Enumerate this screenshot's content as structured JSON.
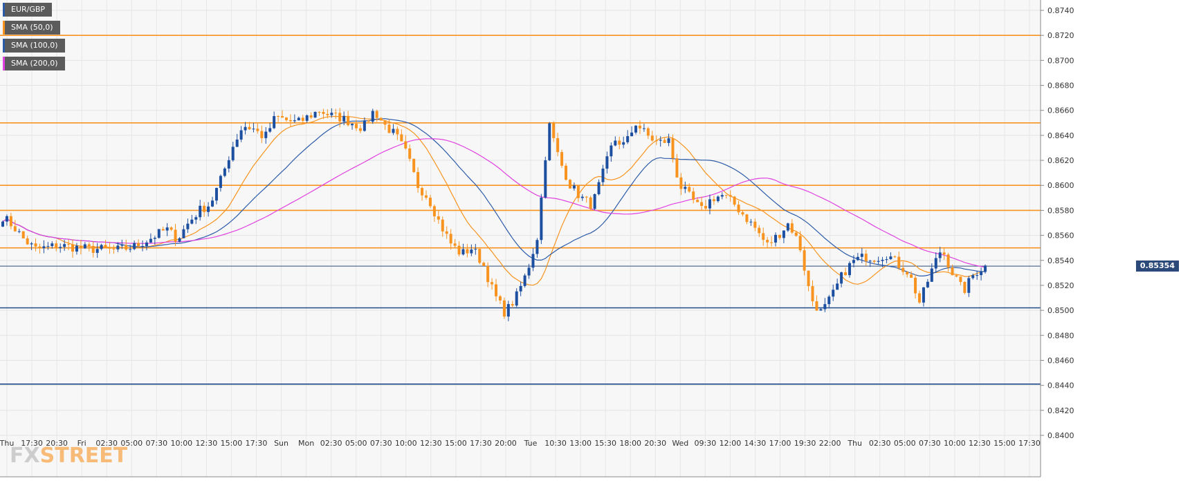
{
  "chart_data": {
    "type": "candlestick",
    "symbol": "EUR/GBP",
    "legend": [
      {
        "label": "EUR/GBP",
        "color": "#2b5aa8"
      },
      {
        "label": "SMA (50,0)",
        "color": "#f7931e"
      },
      {
        "label": "SMA (100,0)",
        "color": "#2b5aa8"
      },
      {
        "label": "SMA (200,0)",
        "color": "#e040e0"
      }
    ],
    "y_range": [
      0.84,
      0.874
    ],
    "y_ticks": [
      "0.8740",
      "0.8720",
      "0.8700",
      "0.8680",
      "0.8660",
      "0.8640",
      "0.8620",
      "0.8600",
      "0.8580",
      "0.8560",
      "0.8540",
      "0.8520",
      "0.8500",
      "0.8480",
      "0.8460",
      "0.8440",
      "0.8420",
      "0.8400"
    ],
    "x_ticks": [
      "Thu",
      "17:30",
      "20:30",
      "Fri",
      "02:30",
      "05:00",
      "07:30",
      "10:00",
      "12:30",
      "15:00",
      "17:30",
      "Sun",
      "Mon",
      "02:30",
      "05:00",
      "07:30",
      "10:00",
      "12:30",
      "15:00",
      "17:30",
      "20:00",
      "Tue",
      "10:30",
      "13:00",
      "15:30",
      "18:00",
      "20:30",
      "Wed",
      "09:30",
      "12:00",
      "14:30",
      "17:00",
      "19:30",
      "22:00",
      "Thu",
      "02:30",
      "05:00",
      "07:30",
      "10:00",
      "12:30",
      "15:00",
      "17:30"
    ],
    "current_price": "0.85354",
    "current_price_value": 0.85354,
    "horizontal_levels": [
      {
        "value": 0.872,
        "color": "#f7931e"
      },
      {
        "value": 0.865,
        "color": "#f7931e"
      },
      {
        "value": 0.86,
        "color": "#f7931e"
      },
      {
        "value": 0.858,
        "color": "#f7931e"
      },
      {
        "value": 0.855,
        "color": "#f7931e"
      },
      {
        "value": 0.85354,
        "color": "#2b4a7a"
      },
      {
        "value": 0.8502,
        "color": "#1f4a8a"
      },
      {
        "value": 0.8441,
        "color": "#1f4a8a"
      }
    ],
    "close_path": [
      0.8575,
      0.8567,
      0.8556,
      0.8549,
      0.855,
      0.8552,
      0.8551,
      0.855,
      0.8549,
      0.8549,
      0.8548,
      0.8549,
      0.8551,
      0.8555,
      0.856,
      0.8565,
      0.8557,
      0.857,
      0.858,
      0.8585,
      0.8605,
      0.863,
      0.8648,
      0.8645,
      0.8638,
      0.8655,
      0.8652,
      0.865,
      0.8655,
      0.866,
      0.8656,
      0.8654,
      0.865,
      0.8646,
      0.866,
      0.8648,
      0.864,
      0.8625,
      0.86,
      0.859,
      0.857,
      0.8554,
      0.8545,
      0.855,
      0.8537,
      0.8513,
      0.8498,
      0.851,
      0.853,
      0.856,
      0.865,
      0.862,
      0.86,
      0.859,
      0.8584,
      0.861,
      0.8637,
      0.8632,
      0.865,
      0.864,
      0.8634,
      0.8636,
      0.86,
      0.859,
      0.858,
      0.859,
      0.8592,
      0.8585,
      0.8575,
      0.8565,
      0.8552,
      0.856,
      0.857,
      0.8552,
      0.851,
      0.8498,
      0.8512,
      0.853,
      0.854,
      0.8543,
      0.8542,
      0.8545,
      0.8537,
      0.853,
      0.8506,
      0.853,
      0.855,
      0.853,
      0.8515,
      0.853,
      0.8535
    ]
  }
}
